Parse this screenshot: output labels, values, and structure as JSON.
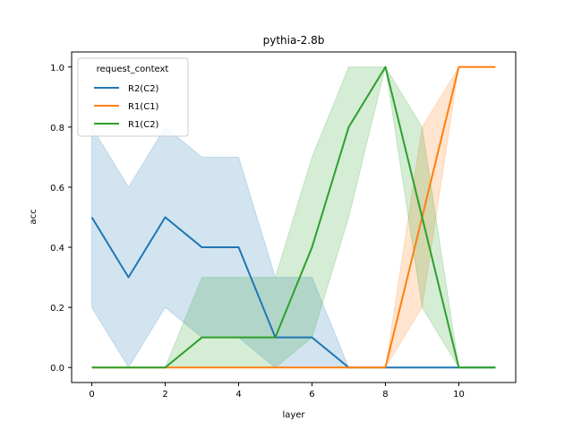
{
  "chart_data": {
    "type": "line",
    "title": "pythia-2.8b",
    "xlabel": "layer",
    "ylabel": "acc",
    "xlim": [
      -0.55,
      11.55
    ],
    "ylim": [
      -0.05,
      1.05
    ],
    "xticks": [
      0,
      2,
      4,
      6,
      8,
      10
    ],
    "xtick_labels": [
      "0",
      "2",
      "4",
      "6",
      "8",
      "10"
    ],
    "yticks": [
      0.0,
      0.2,
      0.4,
      0.6,
      0.8,
      1.0
    ],
    "ytick_labels": [
      "0.0",
      "0.2",
      "0.4",
      "0.6",
      "0.8",
      "1.0"
    ],
    "grid": false,
    "legend": {
      "title": "request_context",
      "placement": "top-left"
    },
    "x": [
      0,
      1,
      2,
      3,
      4,
      5,
      6,
      7,
      8,
      9,
      10,
      11
    ],
    "series": [
      {
        "name": "R2(C2)",
        "color": "#1f77b4",
        "values": [
          0.5,
          0.3,
          0.5,
          0.4,
          0.4,
          0.1,
          0.1,
          0.0,
          0.0,
          0.0,
          0.0,
          0.0
        ],
        "band_low": [
          0.2,
          0.0,
          0.2,
          0.1,
          0.1,
          0.0,
          0.0,
          0.0,
          0.0,
          0.0,
          0.0,
          0.0
        ],
        "band_high": [
          0.8,
          0.6,
          0.8,
          0.7,
          0.7,
          0.3,
          0.3,
          0.0,
          0.0,
          0.0,
          0.0,
          0.0
        ]
      },
      {
        "name": "R1(C1)",
        "color": "#ff7f0e",
        "values": [
          0.0,
          0.0,
          0.0,
          0.0,
          0.0,
          0.0,
          0.0,
          0.0,
          0.0,
          0.5,
          1.0,
          1.0
        ],
        "band_low": [
          0.0,
          0.0,
          0.0,
          0.0,
          0.0,
          0.0,
          0.0,
          0.0,
          0.0,
          0.2,
          1.0,
          1.0
        ],
        "band_high": [
          0.0,
          0.0,
          0.0,
          0.0,
          0.0,
          0.0,
          0.0,
          0.0,
          0.0,
          0.8,
          1.0,
          1.0
        ]
      },
      {
        "name": "R1(C2)",
        "color": "#2ca02c",
        "values": [
          0.0,
          0.0,
          0.0,
          0.1,
          0.1,
          0.1,
          0.4,
          0.8,
          1.0,
          0.5,
          0.0,
          0.0
        ],
        "band_low": [
          0.0,
          0.0,
          0.0,
          0.0,
          0.0,
          0.0,
          0.1,
          0.5,
          1.0,
          0.2,
          0.0,
          0.0
        ],
        "band_high": [
          0.0,
          0.0,
          0.0,
          0.3,
          0.3,
          0.3,
          0.7,
          1.0,
          1.0,
          0.8,
          0.0,
          0.0
        ]
      }
    ]
  }
}
